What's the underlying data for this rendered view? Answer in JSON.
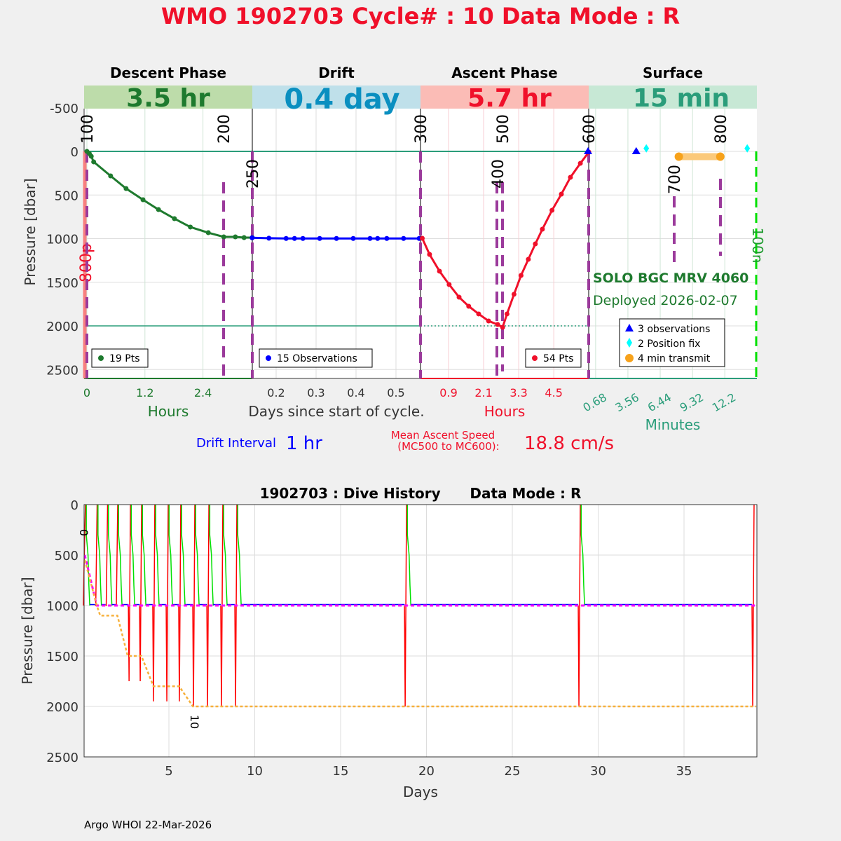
{
  "title": "WMO 1902703   Cycle# : 10   Data Mode : R",
  "colors": {
    "descent": "#1e7a2e",
    "drift": "#0000ff",
    "ascent": "#f0102a",
    "surface": "#2a9d7a",
    "marker": "#9b3a9b",
    "title": "#f0102a"
  },
  "top_plot": {
    "ylabel": "Pressure [dbar]",
    "yticks": [
      "-500",
      "0",
      "500",
      "1000",
      "1500",
      "2000",
      "2500"
    ],
    "panels": [
      {
        "header": "Descent Phase",
        "duration": "3.5 hr",
        "xticks": [
          "0",
          "1.2",
          "2.4"
        ],
        "xlabel": "Hours",
        "legend": "19 Pts"
      },
      {
        "header": "Drift",
        "duration": "0.4 day",
        "xticks": [
          "0.2",
          "0.3",
          "0.4",
          "0.5"
        ],
        "xlabel": "Days since start of cycle.",
        "legend": "15 Observations"
      },
      {
        "header": "Ascent Phase",
        "duration": "5.7 hr",
        "xticks": [
          "0.9",
          "2.1",
          "3.3",
          "4.5"
        ],
        "xlabel": "Hours",
        "legend": "54 Pts"
      },
      {
        "header": "Surface",
        "duration": "15 min",
        "xticks": [
          "0.68",
          "3.56",
          "6.44",
          "9.32",
          "12.2"
        ],
        "xlabel": "Minutes"
      }
    ],
    "mc_labels": [
      "100",
      "200",
      "250",
      "300",
      "400",
      "500",
      "600",
      "700",
      "800"
    ],
    "left_marker_label": "800p",
    "right_marker_label": "100n",
    "float_type": "SOLO BGC MRV 4060",
    "deployed": "Deployed 2026-02-07",
    "surface_legend": [
      "3 observations",
      "2 Position fix",
      "4 min transmit"
    ],
    "drift_interval_label": "Drift Interval",
    "drift_interval_value": "1 hr",
    "ascent_speed_label1": "Mean Ascent Speed",
    "ascent_speed_label2": "(MC500 to MC600):",
    "ascent_speed_value": "18.8 cm/s"
  },
  "bottom_plot": {
    "title": "1902703 : Dive History      Data Mode : R",
    "ylabel": "Pressure [dbar]",
    "xlabel": "Days",
    "yticks": [
      "0",
      "500",
      "1000",
      "1500",
      "2000",
      "2500"
    ],
    "xticks": [
      "5",
      "10",
      "15",
      "20",
      "25",
      "30",
      "35"
    ],
    "cycle_labels": [
      "0",
      "10"
    ]
  },
  "footer": "Argo WHOI 22-Mar-2026",
  "chart_data": [
    {
      "type": "line",
      "title": "Descent Phase",
      "xlabel": "Hours",
      "ylabel": "Pressure [dbar]",
      "ylim": [
        2600,
        -780
      ],
      "x": [
        0,
        0.05,
        0.09,
        0.14,
        0.49,
        0.81,
        1.16,
        1.48,
        1.81,
        2.14,
        2.51,
        2.83,
        3.07,
        3.25,
        3.42
      ],
      "y": [
        0,
        25,
        56,
        120,
        281,
        426,
        554,
        667,
        771,
        867,
        932,
        980,
        980,
        988,
        988
      ]
    },
    {
      "type": "line",
      "title": "Drift",
      "xlabel": "Days since start of cycle.",
      "x": [
        0.14,
        0.182,
        0.225,
        0.246,
        0.267,
        0.309,
        0.351,
        0.393,
        0.435,
        0.454,
        0.477,
        0.519,
        0.558
      ],
      "y": [
        990,
        995,
        998,
        998,
        998,
        998,
        998,
        998,
        998,
        998,
        998,
        998,
        998
      ]
    },
    {
      "type": "line",
      "title": "Ascent Phase",
      "xlabel": "Hours",
      "x": [
        0,
        0.25,
        0.59,
        0.92,
        1.26,
        1.59,
        1.93,
        2.27,
        2.58,
        2.75,
        2.9,
        3.14,
        3.38,
        3.63,
        3.87,
        4.11,
        4.44,
        4.76,
        5.07,
        5.41,
        5.7
      ],
      "y": [
        996,
        1181,
        1373,
        1526,
        1671,
        1775,
        1863,
        1944,
        1984,
        2016,
        1863,
        1638,
        1422,
        1237,
        1060,
        892,
        675,
        490,
        297,
        137,
        8
      ]
    },
    {
      "type": "scatter",
      "title": "Surface",
      "xlabel": "Minutes",
      "observations": {
        "x": [
          0,
          4.3,
          4.3
        ],
        "y": [
          0,
          0,
          0
        ]
      },
      "position_fix": {
        "x": [
          5.2,
          14.2
        ],
        "y": [
          -50,
          -50
        ]
      },
      "transmit": {
        "x": [
          8.1,
          11.8
        ],
        "y": [
          60,
          60
        ]
      }
    },
    {
      "type": "line",
      "title": "1902703 : Dive History      Data Mode : R",
      "xlabel": "Days",
      "ylabel": "Pressure [dbar]",
      "xlim": [
        0.06,
        39.2
      ],
      "ylim": [
        2500,
        0
      ],
      "cycles": {
        "ascent_day": [
          0.14,
          0.82,
          1.43,
          2.02,
          2.76,
          3.41,
          4.18,
          4.96,
          5.69,
          6.51,
          7.33,
          8.14,
          8.96,
          18.84,
          28.96,
          39.08
        ],
        "profile_depth": [
          600,
          1000,
          1000,
          1000,
          1750,
          1750,
          1950,
          1950,
          1950,
          2000,
          2000,
          2000,
          2000,
          2000,
          2000,
          2000
        ]
      },
      "park_depth": {
        "x": [
          0.1,
          0.8,
          1.0
        ],
        "y": [
          500,
          1000,
          1000
        ]
      },
      "profile_target": {
        "x": [
          0.1,
          0.8,
          1.0,
          2.0,
          2.6,
          3.4,
          4.1,
          5.6,
          6.4,
          39.2
        ],
        "y": [
          550,
          1000,
          1100,
          1100,
          1500,
          1500,
          1800,
          1800,
          2000,
          2000
        ]
      }
    }
  ]
}
